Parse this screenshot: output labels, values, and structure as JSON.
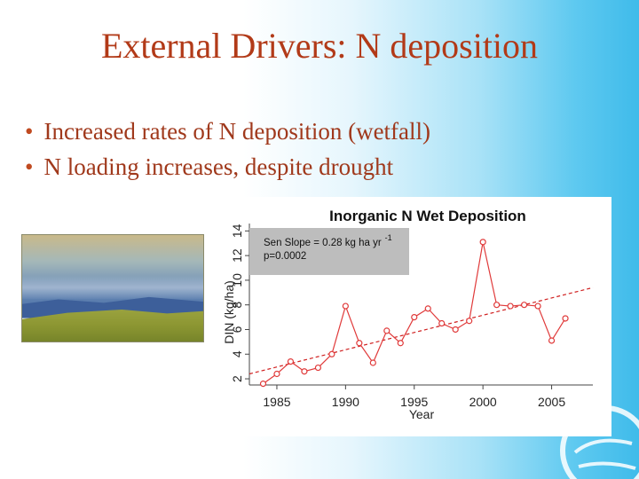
{
  "slide": {
    "title": "External Drivers: N deposition",
    "bullets": [
      "Increased rates of N deposition (wetfall)",
      "N loading increases, despite drought"
    ],
    "bullet_glyph": "•"
  },
  "chart_data": {
    "type": "line",
    "title": "Inorganic N Wet Deposition",
    "xlabel": "Year",
    "ylabel": "DIN (kg/ha)",
    "xlim": [
      1983,
      2008
    ],
    "ylim": [
      1.5,
      14.6
    ],
    "x_ticks": [
      1985,
      1990,
      1995,
      2000,
      2005
    ],
    "y_ticks": [
      2,
      4,
      6,
      8,
      10,
      12,
      14
    ],
    "annotation": {
      "line1": "Sen Slope = 0.28 kg ha yr",
      "superscript": "-1",
      "line2": "p=0.0002"
    },
    "series": [
      {
        "x": [
          1984,
          1985,
          1986,
          1987,
          1988,
          1989,
          1990,
          1991,
          1992,
          1993,
          1994,
          1995,
          1996,
          1997,
          1998,
          1999,
          2000,
          2001,
          2002,
          2003,
          2004,
          2005,
          2006
        ],
        "values": [
          1.6,
          2.4,
          3.4,
          2.6,
          2.9,
          4.0,
          7.9,
          4.9,
          3.3,
          5.9,
          4.9,
          7.0,
          7.7,
          6.5,
          6.0,
          6.7,
          13.1,
          8.0,
          7.9,
          8.0,
          7.9,
          5.1,
          6.9
        ],
        "color": "#e03a3a"
      }
    ],
    "trend": {
      "x": [
        1983,
        2008
      ],
      "y": [
        2.4,
        9.4
      ],
      "color": "#d02020",
      "style": "dashed"
    },
    "annotation_box_color": "#bdbdbd"
  }
}
